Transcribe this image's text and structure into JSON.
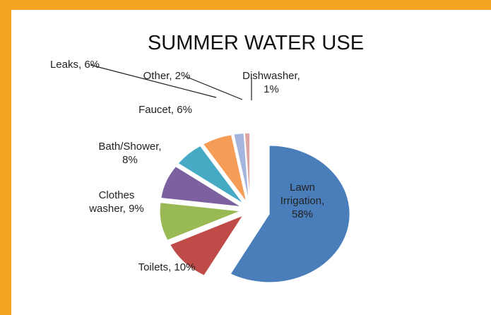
{
  "chart_data": {
    "type": "pie",
    "title": "SUMMER WATER USE",
    "slices": [
      {
        "label": "Lawn Irrigation",
        "value": 58,
        "label_text": [
          "Lawn",
          "Irrigation,",
          "58%"
        ],
        "color": "#4a7ebb"
      },
      {
        "label": "Toilets",
        "value": 10,
        "label_text": [
          "Toilets, 10%"
        ],
        "color": "#be4b48"
      },
      {
        "label": "Clothes washer",
        "value": 9,
        "label_text": [
          "Clothes",
          "washer, 9%"
        ],
        "color": "#98b954"
      },
      {
        "label": "Bath/Shower",
        "value": 8,
        "label_text": [
          "Bath/Shower,",
          "8%"
        ],
        "color": "#7d60a0"
      },
      {
        "label": "Faucet",
        "value": 6,
        "label_text": [
          "Faucet, 6%"
        ],
        "color": "#46aac5"
      },
      {
        "label": "Leaks",
        "value": 6,
        "label_text": [
          "Leaks, 6%"
        ],
        "color": "#f59d56"
      },
      {
        "label": "Other",
        "value": 2,
        "label_text": [
          "Other, 2%"
        ],
        "color": "#a5b6de"
      },
      {
        "label": "Dishwasher",
        "value": 1,
        "label_text": [
          "Dishwasher,",
          "1%"
        ],
        "color": "#e0a4a3"
      }
    ],
    "legend": "none"
  }
}
